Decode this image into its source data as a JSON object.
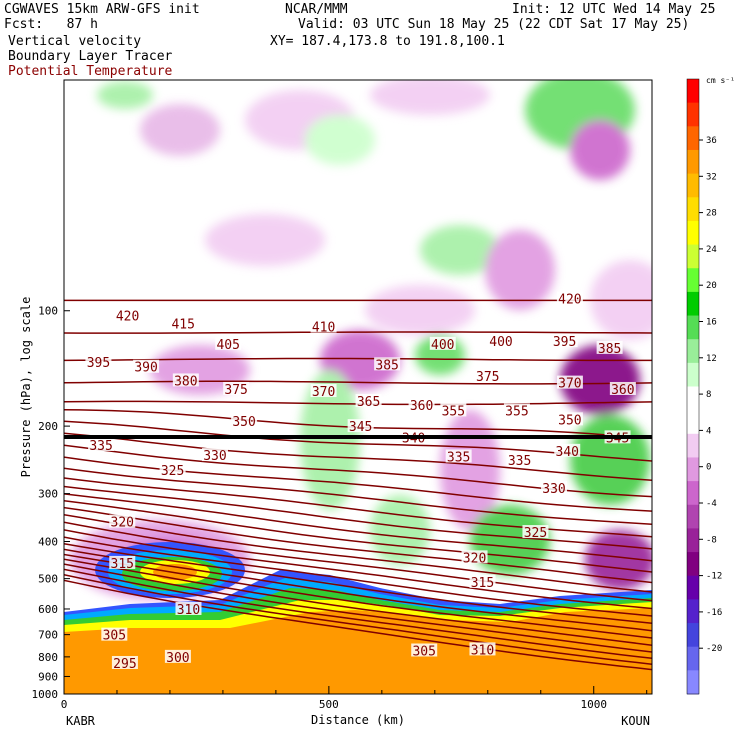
{
  "header": {
    "model": "CGWAVES 15km ARW-GFS init",
    "fcst": "Fcst:   87 h",
    "org": "NCAR/MMM",
    "init": "Init: 12 UTC Wed 14 May 25",
    "valid": "Valid: 03 UTC Sun 18 May 25 (22 CDT Sat 17 May 25)",
    "xy": "XY= 187.4,173.8 to 191.8,100.1",
    "field1": "Vertical velocity",
    "field2": "Boundary Layer Tracer",
    "field3": "Potential Temperature"
  },
  "colors": {
    "theta_contour": "#800000",
    "ground": "#ff9900",
    "tropopause": "#000000"
  },
  "chart_data": {
    "type": "heatmap",
    "xlabel": "Distance (km)",
    "ylabel": "Pressure (hPa), log scale",
    "x_ticks": [
      0,
      500,
      1000
    ],
    "xlim": [
      0,
      1110
    ],
    "y_ticks": [
      100,
      200,
      300,
      400,
      500,
      600,
      700,
      800,
      900,
      1000
    ],
    "ylim": [
      1000,
      25
    ],
    "log_y": true,
    "x_endpoint_left": "KABR",
    "x_endpoint_right": "KOUN",
    "colorbar": {
      "unit": "cm s⁻¹",
      "tick_labels": [
        "36",
        "32",
        "28",
        "24",
        "20",
        "16",
        "12",
        "8",
        "4",
        "0",
        "-4",
        "-8",
        "-12",
        "-16",
        "-20"
      ],
      "colors": [
        "#ff0000",
        "#ff3300",
        "#ff6600",
        "#ff9900",
        "#ffbb00",
        "#ffdd00",
        "#ffff00",
        "#ccff33",
        "#66ff33",
        "#00cc00",
        "#55dd55",
        "#99ee99",
        "#ccffcc",
        "#ffffff",
        "#ffffff",
        "#f2ccf2",
        "#e099e0",
        "#cc66cc",
        "#b044b0",
        "#992299",
        "#800080",
        "#6600aa",
        "#5522cc",
        "#4444dd",
        "#6666ee",
        "#8888ff"
      ]
    },
    "theta_labels": [
      {
        "v": "420",
        "x": 120,
        "p": 103
      },
      {
        "v": "415",
        "x": 225,
        "p": 108
      },
      {
        "v": "410",
        "x": 490,
        "p": 110
      },
      {
        "v": "405",
        "x": 310,
        "p": 122
      },
      {
        "v": "400",
        "x": 715,
        "p": 122
      },
      {
        "v": "400",
        "x": 825,
        "p": 120
      },
      {
        "v": "395",
        "x": 945,
        "p": 120
      },
      {
        "v": "420",
        "x": 955,
        "p": 93
      },
      {
        "v": "385",
        "x": 1030,
        "p": 125
      },
      {
        "v": "395",
        "x": 65,
        "p": 136
      },
      {
        "v": "390",
        "x": 155,
        "p": 140
      },
      {
        "v": "385",
        "x": 610,
        "p": 138
      },
      {
        "v": "375",
        "x": 800,
        "p": 148
      },
      {
        "v": "370",
        "x": 955,
        "p": 154
      },
      {
        "v": "380",
        "x": 230,
        "p": 152
      },
      {
        "v": "375",
        "x": 325,
        "p": 160
      },
      {
        "v": "370",
        "x": 490,
        "p": 162
      },
      {
        "v": "365",
        "x": 575,
        "p": 172
      },
      {
        "v": "360",
        "x": 675,
        "p": 176
      },
      {
        "v": "355",
        "x": 735,
        "p": 182
      },
      {
        "v": "355",
        "x": 855,
        "p": 182
      },
      {
        "v": "360",
        "x": 1055,
        "p": 160
      },
      {
        "v": "350",
        "x": 340,
        "p": 194
      },
      {
        "v": "350",
        "x": 955,
        "p": 192
      },
      {
        "v": "345",
        "x": 560,
        "p": 200
      },
      {
        "v": "345",
        "x": 1045,
        "p": 214
      },
      {
        "v": "340",
        "x": 660,
        "p": 214
      },
      {
        "v": "340",
        "x": 950,
        "p": 232
      },
      {
        "v": "335",
        "x": 70,
        "p": 224
      },
      {
        "v": "335",
        "x": 745,
        "p": 240
      },
      {
        "v": "335",
        "x": 860,
        "p": 245
      },
      {
        "v": "330",
        "x": 285,
        "p": 238
      },
      {
        "v": "330",
        "x": 925,
        "p": 290
      },
      {
        "v": "325",
        "x": 205,
        "p": 260
      },
      {
        "v": "325",
        "x": 890,
        "p": 378
      },
      {
        "v": "320",
        "x": 110,
        "p": 355
      },
      {
        "v": "320",
        "x": 775,
        "p": 440
      },
      {
        "v": "315",
        "x": 110,
        "p": 455
      },
      {
        "v": "315",
        "x": 790,
        "p": 510
      },
      {
        "v": "310",
        "x": 235,
        "p": 600
      },
      {
        "v": "310",
        "x": 790,
        "p": 765
      },
      {
        "v": "305",
        "x": 95,
        "p": 700
      },
      {
        "v": "305",
        "x": 680,
        "p": 770
      },
      {
        "v": "300",
        "x": 215,
        "p": 800
      },
      {
        "v": "295",
        "x": 115,
        "p": 830
      }
    ]
  }
}
